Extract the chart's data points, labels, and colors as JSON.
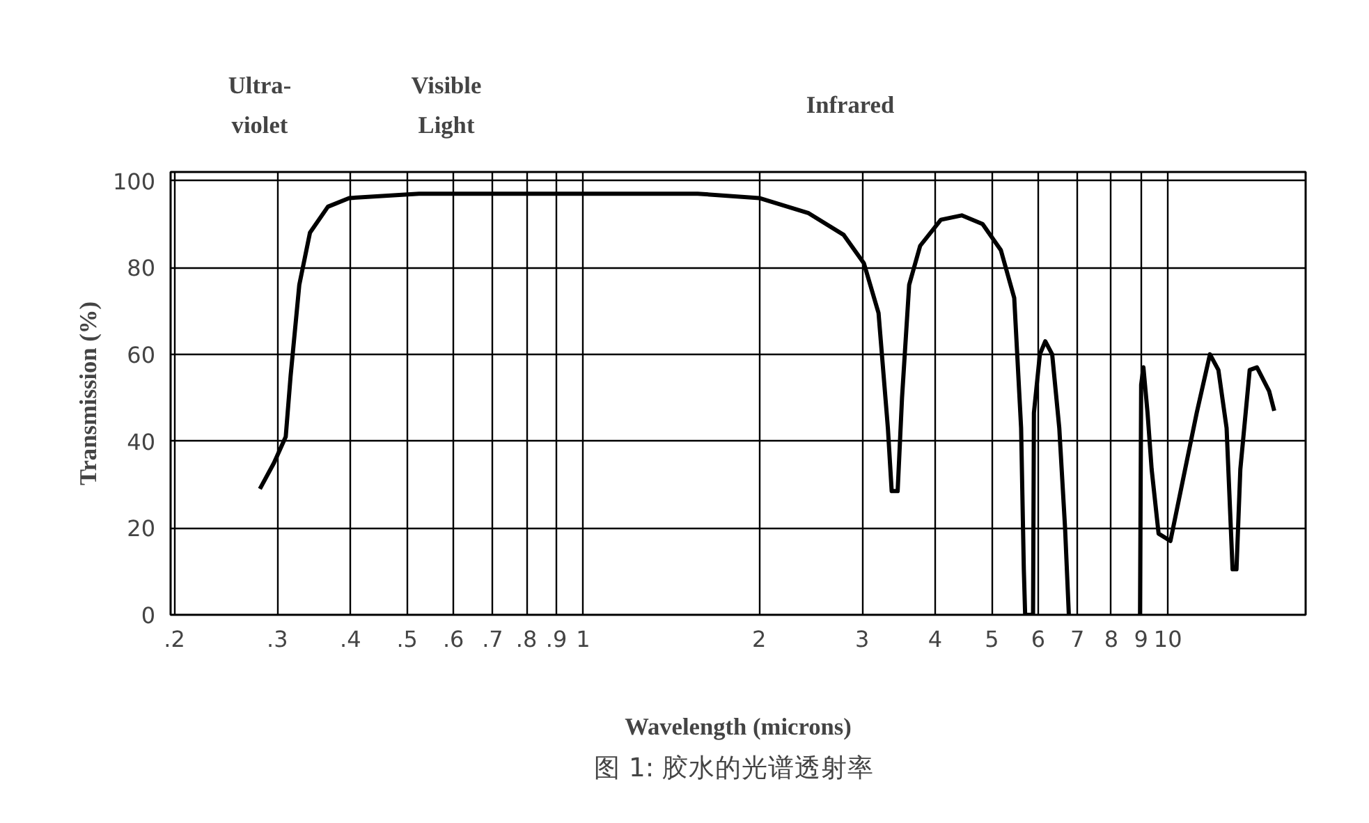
{
  "chart_data": {
    "type": "line",
    "xlabel": "Wavelength (microns)",
    "ylabel": "Transmission (%)",
    "annotations": [
      "Ultra-\nviolet",
      "Visible\nLight",
      "Infrared",
      "图 1:  胶水的光谱透射率"
    ],
    "log": "x",
    "grid": true,
    "marker": "none",
    "line_style": "solid",
    "xlim": [
      0.197,
      17.2
    ],
    "ylim": [
      0,
      102
    ],
    "xticks": [
      {
        "value": 0.2,
        "label": ".2"
      },
      {
        "value": 0.3,
        "label": ".3"
      },
      {
        "value": 0.4,
        "label": ".4"
      },
      {
        "value": 0.5,
        "label": ".5"
      },
      {
        "value": 0.6,
        "label": ".6"
      },
      {
        "value": 0.7,
        "label": ".7"
      },
      {
        "value": 0.8,
        "label": ".8"
      },
      {
        "value": 0.9,
        "label": ".9"
      },
      1,
      2,
      3,
      4,
      5,
      6,
      7,
      8,
      9,
      10
    ],
    "yticks": [
      0,
      20,
      40,
      60,
      80,
      100
    ],
    "series": [
      {
        "color": "#000000",
        "x": [
          0.28,
          0.296,
          0.31,
          0.316,
          0.327,
          0.341,
          0.366,
          0.398,
          0.524,
          1,
          1.57,
          2.0,
          2.43,
          2.79,
          3.02,
          3.2,
          3.32,
          3.37,
          3.45,
          3.51,
          3.61,
          3.77,
          4.09,
          4.44,
          4.82,
          5.18,
          5.46,
          5.61,
          5.67,
          5.7,
          5.88,
          5.9,
          6.04,
          6.17,
          6.34,
          6.52,
          6.67,
          6.77,
          7.5,
          8.96,
          9.0,
          9.08,
          9.23,
          9.38,
          9.64,
          10.1,
          10.7,
          11.2,
          11.8,
          12.2,
          12.6,
          12.9,
          13.1,
          13.3,
          13.8,
          14.2,
          14.9,
          15.2
        ],
        "values": [
          29,
          35,
          41,
          55,
          76,
          88,
          94,
          96,
          97,
          97,
          97,
          96,
          92.5,
          87.5,
          81,
          69.5,
          43,
          28.5,
          28.5,
          50,
          76,
          85,
          91,
          92,
          90,
          84,
          73,
          43,
          10.5,
          0,
          0,
          46.5,
          60,
          63,
          60,
          43,
          20,
          0,
          null,
          0,
          53,
          57,
          46.5,
          33.5,
          18.7,
          17,
          33.5,
          46.5,
          60,
          56.4,
          43,
          10.5,
          10.5,
          33.5,
          56.4,
          57,
          51.5,
          47
        ]
      }
    ]
  }
}
